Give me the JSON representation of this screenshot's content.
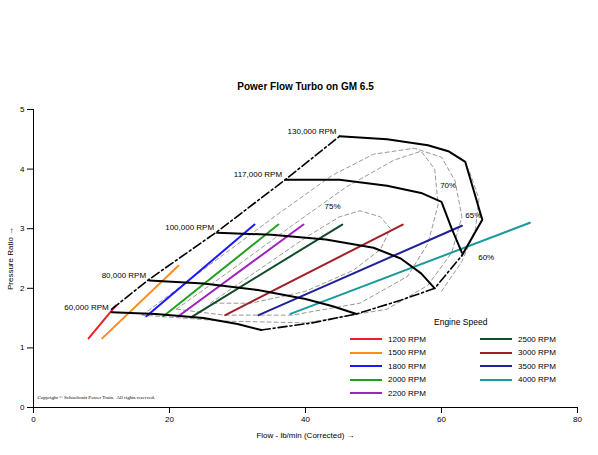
{
  "chart_data": {
    "type": "line",
    "title": "Power Flow Turbo on GM 6.5",
    "x_label": "Flow - lb/min (Corrected)",
    "y_label": "Pressure Ratio",
    "xlim": [
      0,
      80
    ],
    "xticks": [
      0,
      20,
      40,
      60,
      80
    ],
    "ylim": [
      0,
      5
    ],
    "yticks": [
      0,
      1,
      2,
      3,
      4,
      5
    ],
    "grid": false,
    "legend": "bottom-right",
    "legend_title": "Engine Speed",
    "copyright": "Copyright © Schoolcraft Power Train.  All rights reserved.",
    "series": [
      {
        "name": "1200 RPM",
        "color": "#e8202a",
        "x": [
          8.1,
          12.1
        ],
        "values": [
          1.16,
          1.71
        ]
      },
      {
        "name": "1500 RPM",
        "color": "#ff8c1a",
        "x": [
          10.1,
          21.3
        ],
        "values": [
          1.16,
          2.38
        ]
      },
      {
        "name": "1800 RPM",
        "color": "#1a1aff",
        "x": [
          16.6,
          32.5
        ],
        "values": [
          1.53,
          3.07
        ]
      },
      {
        "name": "2000 RPM",
        "color": "#22a022",
        "x": [
          19.1,
          36.0
        ],
        "values": [
          1.53,
          3.07
        ]
      },
      {
        "name": "2200 RPM",
        "color": "#a020c0",
        "x": [
          21.3,
          39.7
        ],
        "values": [
          1.53,
          3.07
        ]
      },
      {
        "name": "2500 RPM",
        "color": "#0f4d2a",
        "x": [
          23.4,
          45.4
        ],
        "values": [
          1.53,
          3.07
        ]
      },
      {
        "name": "3000 RPM",
        "color": "#a0202a",
        "x": [
          28.2,
          54.3
        ],
        "values": [
          1.55,
          3.07
        ]
      },
      {
        "name": "3500 RPM",
        "color": "#20209a",
        "x": [
          33.1,
          63.0
        ],
        "values": [
          1.55,
          3.05
        ]
      },
      {
        "name": "4000 RPM",
        "color": "#1a9a9a",
        "x": [
          37.8,
          73.0
        ],
        "values": [
          1.57,
          3.1
        ]
      }
    ],
    "speed_lines": [
      {
        "name": "60,000 RPM",
        "color": "#000000",
        "line_style": "solid",
        "x": [
          11.5,
          18,
          25,
          30,
          33.5
        ],
        "values": [
          1.6,
          1.57,
          1.5,
          1.4,
          1.3
        ]
      },
      {
        "name": "80,000 RPM",
        "color": "#000000",
        "line_style": "solid",
        "x": [
          17,
          25,
          33,
          40,
          44,
          47.5
        ],
        "values": [
          2.13,
          2.08,
          1.97,
          1.82,
          1.7,
          1.57
        ]
      },
      {
        "name": "100,000 RPM",
        "color": "#000000",
        "line_style": "solid",
        "x": [
          27,
          35,
          43,
          50,
          54,
          57,
          59
        ],
        "values": [
          2.93,
          2.9,
          2.82,
          2.68,
          2.5,
          2.25,
          2.0
        ]
      },
      {
        "name": "117,000 RPM",
        "color": "#000000",
        "line_style": "solid",
        "x": [
          37,
          45,
          52,
          57,
          60,
          61.5,
          63
        ],
        "values": [
          3.82,
          3.82,
          3.72,
          3.6,
          3.45,
          3.0,
          2.6
        ]
      },
      {
        "name": "130,000 RPM",
        "color": "#000000",
        "line_style": "solid",
        "x": [
          45,
          52,
          58,
          61,
          63.5,
          66,
          63
        ],
        "values": [
          4.55,
          4.5,
          4.4,
          4.3,
          4.12,
          3.15,
          2.55
        ]
      }
    ],
    "boundary_lines": [
      {
        "color": "#000000",
        "line_style": "dashdot",
        "x": [
          11.5,
          17,
          27,
          37,
          45
        ],
        "values": [
          1.65,
          2.15,
          2.95,
          3.82,
          4.55
        ]
      },
      {
        "color": "#000000",
        "line_style": "dashdot",
        "x": [
          33.5,
          41,
          47.5,
          54,
          59,
          63
        ],
        "values": [
          1.3,
          1.42,
          1.57,
          1.8,
          2.0,
          2.55
        ]
      }
    ],
    "efficiency_contours": [
      {
        "name": "75%",
        "color": "#999999",
        "line_style": "dashed",
        "label_x": 42.8,
        "label_y": 3.37,
        "x": [
          26,
          33,
          40,
          45,
          48,
          51,
          52.5,
          51,
          47,
          40,
          32,
          26
        ],
        "values": [
          1.75,
          2.3,
          2.85,
          3.2,
          3.3,
          3.2,
          3.0,
          2.65,
          2.3,
          1.95,
          1.75,
          1.75
        ]
      },
      {
        "name": "70%",
        "color": "#999999",
        "line_style": "dashed",
        "label_x": 59.8,
        "label_y": 3.72,
        "x": [
          21,
          29,
          38,
          46,
          53,
          57,
          59,
          59.5,
          58,
          55,
          48,
          38,
          28,
          21
        ],
        "values": [
          1.65,
          2.3,
          3.05,
          3.7,
          4.15,
          4.3,
          4.0,
          3.4,
          2.75,
          2.2,
          1.75,
          1.55,
          1.55,
          1.65
        ]
      },
      {
        "name": "65%",
        "color": "#999999",
        "line_style": "dashed",
        "label_x": 63.5,
        "label_y": 3.22,
        "x": [
          16,
          26,
          36,
          44,
          50,
          56,
          60,
          62,
          63,
          61.5,
          58,
          52,
          40,
          28,
          16
        ],
        "values": [
          1.55,
          2.4,
          3.25,
          3.9,
          4.25,
          4.35,
          4.2,
          3.8,
          3.2,
          2.6,
          2.05,
          1.65,
          1.42,
          1.45,
          1.55
        ]
      },
      {
        "name": "60%",
        "color": "#999999",
        "line_style": "dashed",
        "label_x": 65.4,
        "label_y": 2.52,
        "x": [
          60,
          63,
          65,
          65.5,
          64
        ],
        "values": [
          1.95,
          2.45,
          3.0,
          3.5,
          4.0
        ]
      }
    ]
  }
}
